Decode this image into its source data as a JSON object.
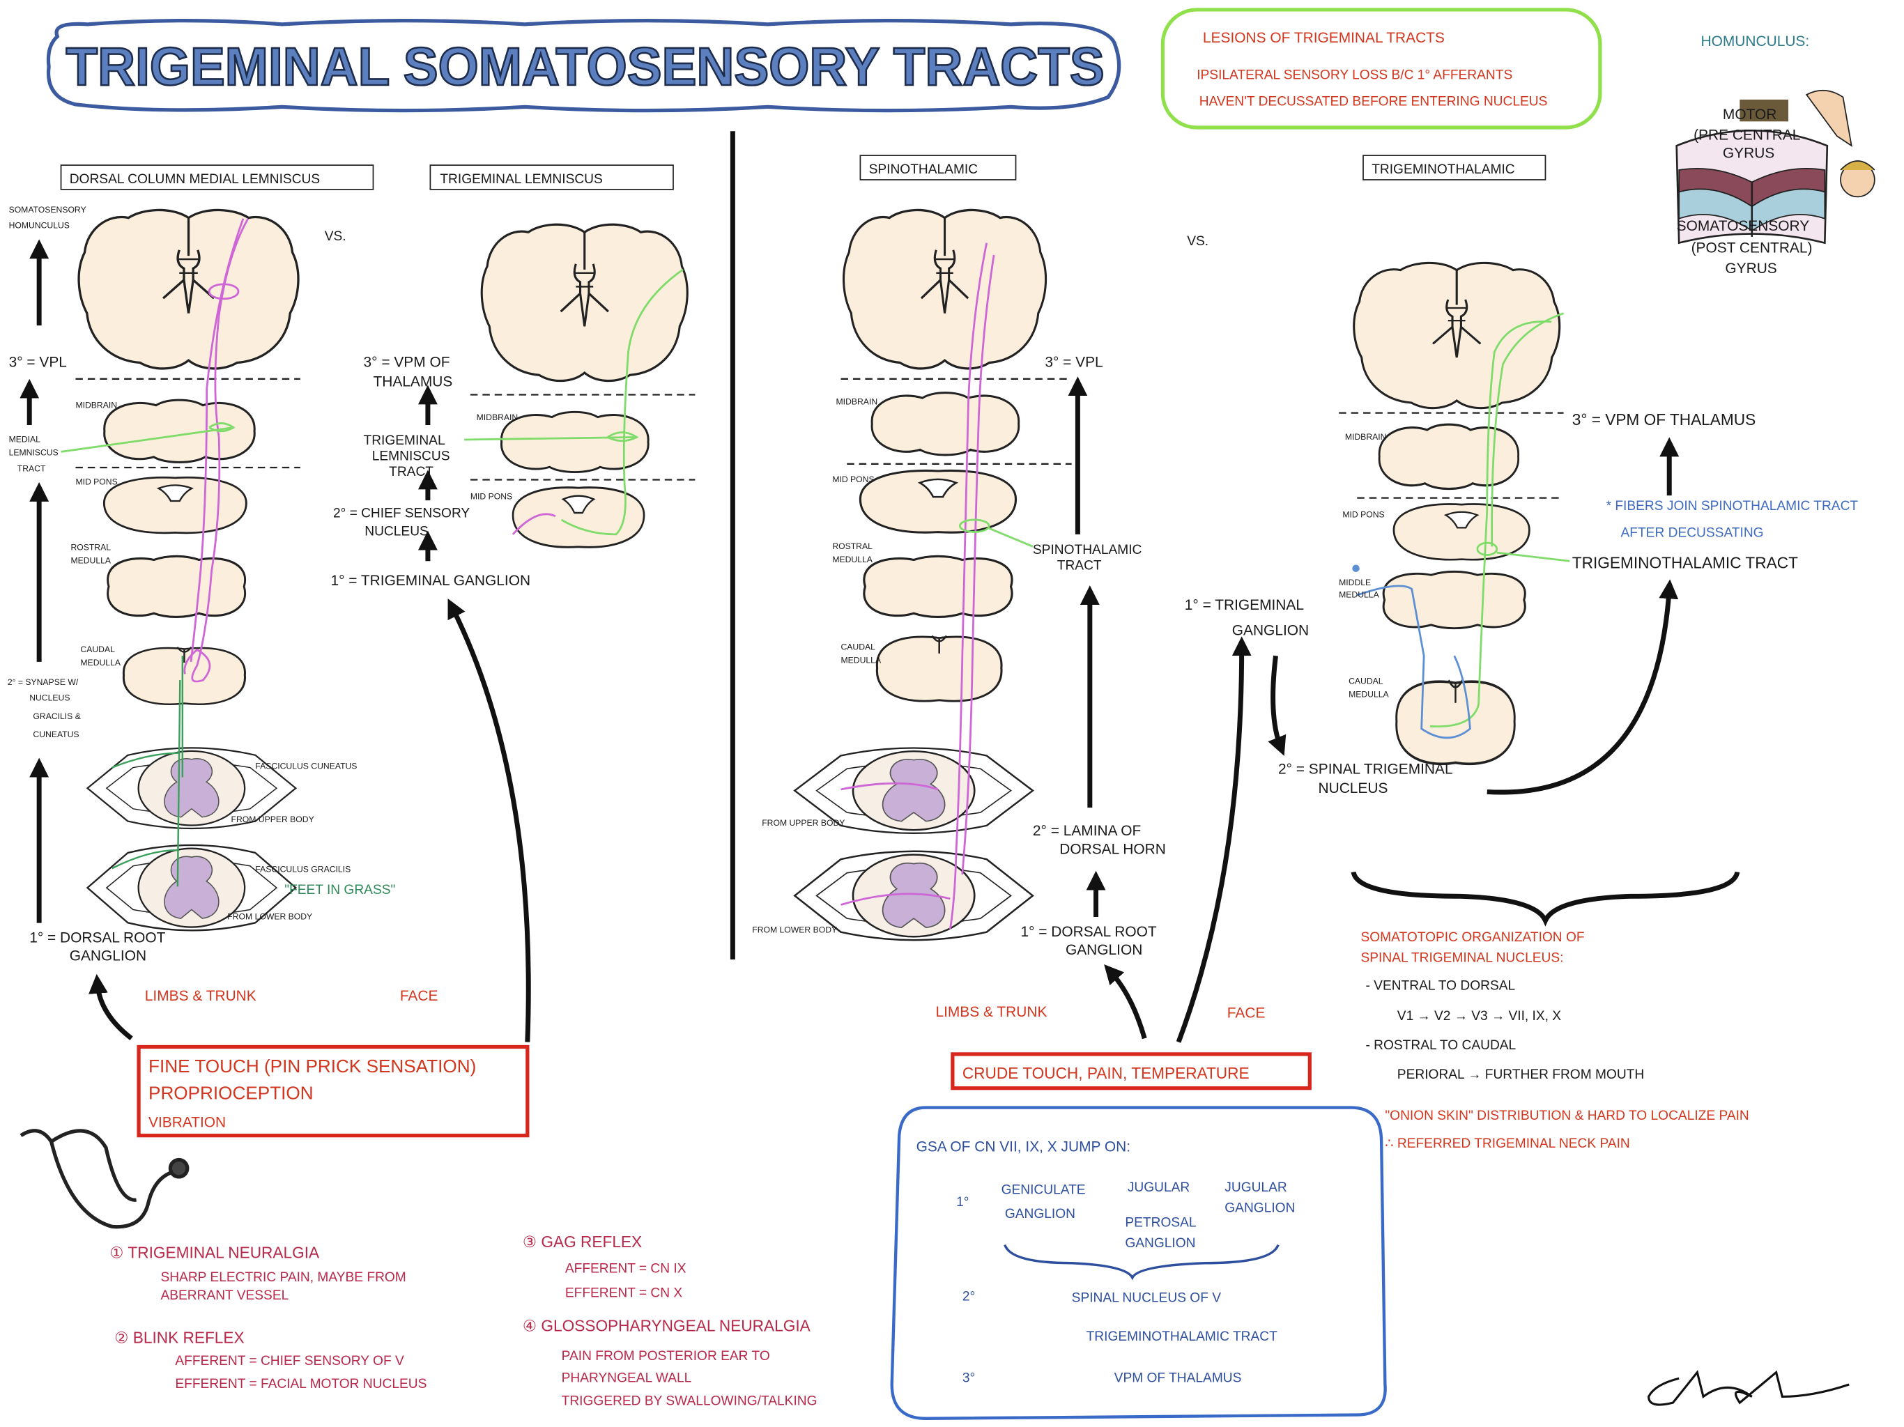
{
  "title": "TRIGEMINAL SOMATOSENSORY TRACTS",
  "lesions": {
    "title": "LESIONS OF TRIGEMINAL TRACTS",
    "lines": [
      "IPSILATERAL SENSORY LOSS B/C 1° AFFERANTS",
      "HAVEN'T DECUSSATED BEFORE ENTERING NUCLEUS"
    ]
  },
  "homunculus": {
    "title": "HOMUNCULUS:",
    "motor": [
      "MOTOR",
      "(PRE CENTRAL",
      "GYRUS"
    ],
    "sensory": [
      "SOMATOSENSORY",
      "(POST CENTRAL)",
      "GYRUS"
    ]
  },
  "vs": "VS.",
  "panels": [
    {
      "title": "DORSAL COLUMN MEDIAL LEMNISCUS",
      "labels": [
        "SOMATOSENSORY",
        "HOMUNCULUS",
        "3° = VPL",
        "MIDBRAIN",
        "MEDIAL",
        "LEMNISCUS",
        "TRACT",
        "MID PONS",
        "ROSTRAL",
        "MEDULLA",
        "CAUDAL",
        "MEDULLA",
        "2° = SYNAPSE W/",
        "NUCLEUS",
        "GRACILIS &",
        "CUNEATUS",
        "FASCICULUS CUNEATUS",
        "FROM UPPER BODY",
        "FASCICULUS GRACILIS",
        "\"FEET IN GRASS\"",
        "FROM LOWER BODY",
        "1° = DORSAL ROOT",
        "GANGLION"
      ]
    },
    {
      "title": "TRIGEMINAL LEMNISCUS",
      "labels": [
        "3° = VPM OF",
        "THALAMUS",
        "MIDBRAIN",
        "TRIGEMINAL",
        "LEMNISCUS",
        "TRACT",
        "MID PONS",
        "2° = CHIEF SENSORY",
        "NUCLEUS",
        "1° = TRIGEMINAL GANGLION"
      ]
    },
    {
      "title": "SPINOTHALAMIC",
      "labels": [
        "MIDBRAIN",
        "MID PONS",
        "ROSTRAL",
        "MEDULLA",
        "CAUDAL",
        "MEDULLA",
        "3° = VPL",
        "SPINOTHALAMIC",
        "TRACT",
        "2° = LAMINA OF",
        "DORSAL HORN",
        "1° = DORSAL ROOT",
        "GANGLION",
        "FROM UPPER BODY",
        "FROM LOWER BODY"
      ]
    },
    {
      "title": "TRIGEMINOTHALAMIC",
      "labels": [
        "MIDBRAIN",
        "MID PONS",
        "MIDDLE",
        "MEDULLA",
        "CAUDAL",
        "MEDULLA",
        "3° = VPM OF THALAMUS",
        "* FIBERS JOIN SPINOTHALAMIC TRACT",
        "AFTER DECUSSATING",
        "TRIGEMINOTHALAMIC TRACT",
        "1° = TRIGEMINAL",
        "GANGLION",
        "2° = SPINAL TRIGEMINAL",
        "NUCLEUS"
      ]
    }
  ],
  "left_modalities": {
    "limbs": "LIMBS & TRUNK",
    "face": "FACE",
    "box": [
      "FINE TOUCH (PIN PRICK SENSATION)",
      "PROPRIOCEPTION",
      "VIBRATION"
    ]
  },
  "right_modalities": {
    "limbs": "LIMBS & TRUNK",
    "face": "FACE",
    "box": "CRUDE TOUCH, PAIN, TEMPERATURE"
  },
  "somatotopic": {
    "title": [
      "SOMATOTOPIC ORGANIZATION OF",
      "SPINAL TRIGEMINAL NUCLEUS:"
    ],
    "lines": [
      "- VENTRAL TO DORSAL",
      "V1 → V2 → V3 → VII, IX, X",
      "- ROSTRAL TO CAUDAL",
      "PERIORAL → FURTHER FROM MOUTH"
    ],
    "notes": [
      "\"ONION SKIN\" DISTRIBUTION & HARD TO LOCALIZE PAIN",
      "∴ REFERRED TRIGEMINAL NECK PAIN"
    ]
  },
  "gsa": {
    "header": "GSA OF CN VII, IX, X JUMP ON:",
    "first": "1°",
    "geniculate": [
      "GENICULATE",
      "GANGLION"
    ],
    "jugular": "JUGULAR",
    "petrosal": [
      "PETROSAL",
      "GANGLION"
    ],
    "jugular_ganglion": [
      "JUGULAR",
      "GANGLION"
    ],
    "second": "2°",
    "spinal": "SPINAL NUCLEUS OF V",
    "tract": "TRIGEMINOTHALAMIC TRACT",
    "third": "3°",
    "vpm": "VPM OF THALAMUS"
  },
  "clinical": [
    {
      "title": "① TRIGEMINAL NEURALGIA",
      "lines": [
        "SHARP ELECTRIC PAIN, MAYBE FROM",
        "ABERRANT VESSEL"
      ]
    },
    {
      "title": "② BLINK REFLEX",
      "lines": [
        "AFFERENT = CHIEF SENSORY OF V",
        "EFFERENT = FACIAL MOTOR NUCLEUS"
      ]
    },
    {
      "title": "③ GAG REFLEX",
      "lines": [
        "AFFERENT = CN IX",
        "EFFERENT = CN X"
      ]
    },
    {
      "title": "④ GLOSSOPHARYNGEAL NEURALGIA",
      "lines": [
        "PAIN FROM POSTERIOR EAR TO",
        "PHARYNGEAL WALL",
        "TRIGGERED BY SWALLOWING/TALKING"
      ]
    }
  ]
}
